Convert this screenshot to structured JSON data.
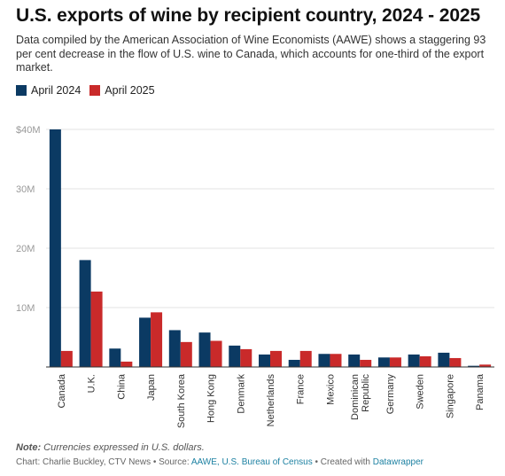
{
  "header": {
    "title": "U.S. exports of wine by recipient country, 2024 - 2025",
    "subtitle": "Data compiled by the American Association of Wine Economists (AAWE) shows a staggering 93 per cent decrease in the flow of U.S. wine to Canada, which accounts for one-third of the export market."
  },
  "footer": {
    "note_label": "Note:",
    "note_text": "Currencies expressed in U.S. dollars.",
    "credit_prefix": "Chart: Charlie Buckley, CTV News • Source: ",
    "credit_source": "AAWE, U.S. Bureau of Census",
    "credit_mid": " • Created with ",
    "credit_tool": "Datawrapper"
  },
  "colors": {
    "april_2024": "#0b3a63",
    "april_2025": "#c92a2a",
    "link": "#1d81a2"
  },
  "chart_data": {
    "type": "bar",
    "title": "U.S. exports of wine by recipient country, 2024 - 2025",
    "xlabel": "",
    "ylabel": "",
    "ylim": [
      0,
      40000000
    ],
    "yticks": [
      0,
      10000000,
      20000000,
      30000000,
      40000000
    ],
    "ytick_labels": [
      "",
      "10M",
      "20M",
      "30M",
      "$40M"
    ],
    "grid": true,
    "legend": "top-left",
    "categories": [
      "Canada",
      "U.K.",
      "China",
      "Japan",
      "South Korea",
      "Hong Kong",
      "Denmark",
      "Netherlands",
      "France",
      "Mexico",
      "Dominican Republic",
      "Germany",
      "Sweden",
      "Singapore",
      "Panama"
    ],
    "series": [
      {
        "name": "April 2024",
        "values": [
          40000000,
          18000000,
          3100000,
          8300000,
          6200000,
          5800000,
          3600000,
          2100000,
          1200000,
          2200000,
          2100000,
          1600000,
          2100000,
          2400000,
          200000
        ]
      },
      {
        "name": "April 2025",
        "values": [
          2700000,
          12700000,
          900000,
          9200000,
          4200000,
          4400000,
          3000000,
          2700000,
          2700000,
          2200000,
          1200000,
          1600000,
          1800000,
          1500000,
          400000
        ]
      }
    ]
  }
}
